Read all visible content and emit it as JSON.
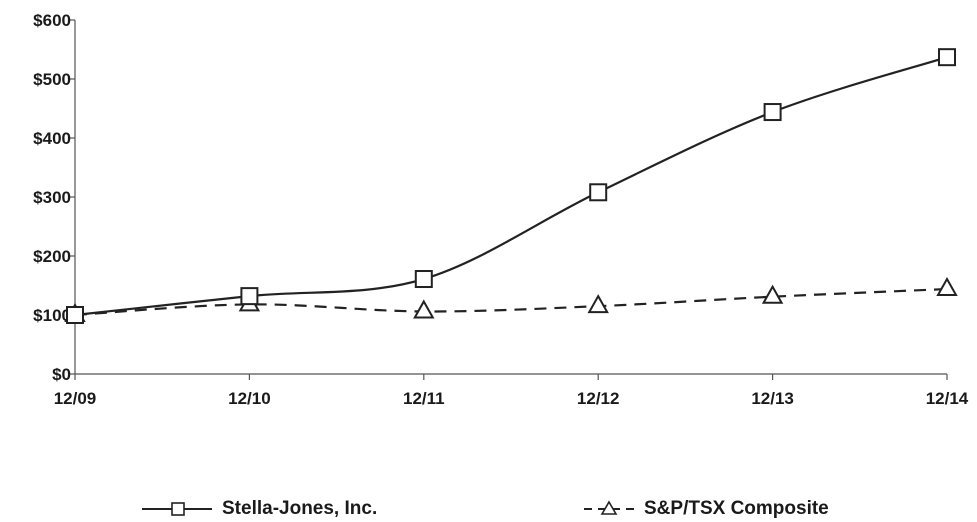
{
  "chart_data": {
    "type": "line",
    "x": [
      "12/09",
      "12/10",
      "12/11",
      "12/12",
      "12/13",
      "12/14"
    ],
    "y_ticks": [
      "$0",
      "$100",
      "$200",
      "$300",
      "$400",
      "$500",
      "$600"
    ],
    "ylim": [
      0,
      600
    ],
    "grid": false,
    "legend_position": "bottom",
    "series": [
      {
        "name": "Stella-Jones, Inc.",
        "values": [
          100,
          132,
          161,
          308,
          444,
          537
        ],
        "marker": "square",
        "line_style": "solid",
        "color": "#222222"
      },
      {
        "name": "S&P/TSX Composite",
        "values": [
          100,
          118,
          106,
          115,
          131,
          144
        ],
        "marker": "triangle",
        "line_style": "dashed",
        "color": "#222222"
      }
    ]
  }
}
